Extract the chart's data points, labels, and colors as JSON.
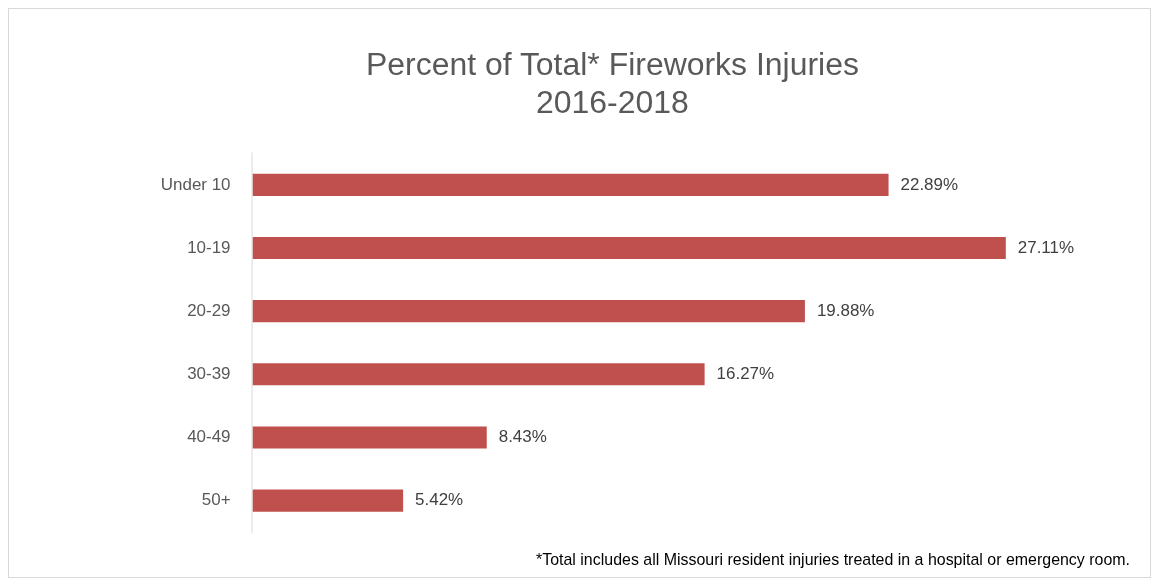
{
  "chart_data": {
    "type": "bar",
    "orientation": "horizontal",
    "title": "Percent of Total* Fireworks Injuries\n2016-2018",
    "categories": [
      "Under 10",
      "10-19",
      "20-29",
      "30-39",
      "40-49",
      "50+"
    ],
    "values": [
      22.89,
      27.11,
      19.88,
      16.27,
      8.43,
      5.42
    ],
    "value_labels": [
      "22.89%",
      "27.11%",
      "19.88%",
      "16.27%",
      "8.43%",
      "5.42%"
    ],
    "color": "#c0504d",
    "grid": false,
    "legend": false,
    "tick_labels": "y",
    "annotations": [
      "*Total includes all Missouri resident injuries treated in a hospital or emergency room."
    ]
  }
}
